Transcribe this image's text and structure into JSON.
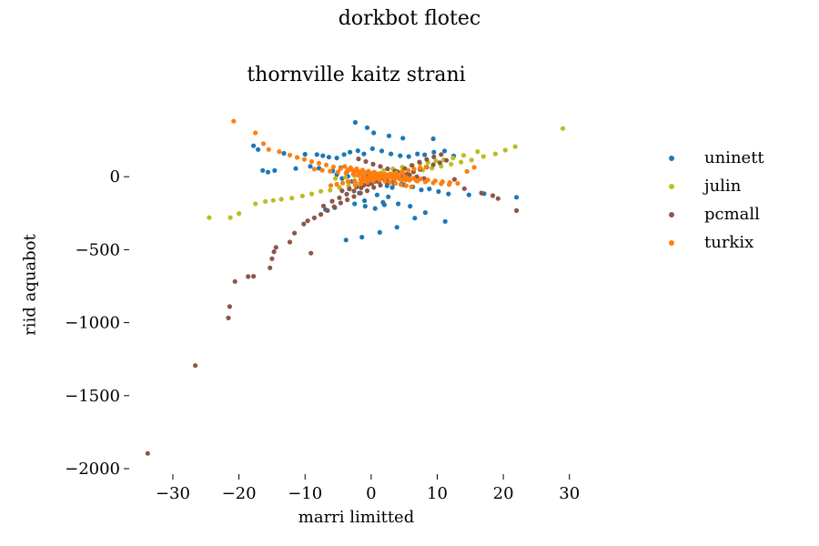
{
  "chart_data": {
    "type": "scatter",
    "suptitle": "dorkbot flotec",
    "title": "thornville kaitz strani",
    "xlabel": "marri limitted",
    "ylabel": "riid aquabot",
    "xlim": [
      -35.5,
      31
    ],
    "ylim": [
      -2000,
      400
    ],
    "xticks": [
      -30,
      -20,
      -10,
      0,
      10,
      20,
      30
    ],
    "yticks": [
      -2000,
      -1500,
      -1000,
      -500,
      0
    ],
    "xtick_labels": [
      "−30",
      "−20",
      "−10",
      "0",
      "10",
      "20",
      "30"
    ],
    "ytick_labels": [
      "−2000",
      "−1500",
      "−1000",
      "−500",
      "0"
    ],
    "grid": false,
    "legend_position": "right",
    "series": [
      {
        "name": "uninett",
        "color": "#1f77b4",
        "x": [
          -2.4,
          -0.6,
          0.4,
          2.7,
          4.8,
          9.4,
          -17.8,
          -17.1,
          -13.2,
          -10.0,
          -8.2,
          -7.3,
          -6.4,
          -5.2,
          -4.1,
          -3.2,
          -2.0,
          -1.1,
          0.2,
          1.6,
          3.0,
          4.4,
          5.7,
          7.0,
          8.1,
          9.5,
          11.1,
          12.5,
          -16.4,
          -15.6,
          -14.6,
          -11.4,
          -9.2,
          -7.9,
          -5.8,
          -4.6,
          -3.6,
          -2.6,
          -1.5,
          -0.4,
          0.8,
          2.1,
          3.5,
          4.9,
          6.3,
          7.6,
          8.8,
          10.2,
          11.7,
          14.8,
          17.1,
          22.0,
          -3.3,
          -1.8,
          0.9,
          2.6,
          -2.5,
          -0.9,
          0.6,
          2.0,
          -3.8,
          -1.4,
          1.3,
          3.9,
          11.2,
          6.6,
          -6.9,
          -5.5,
          -1.0,
          1.8,
          4.1,
          5.9,
          8.2,
          -4.4,
          -2.9,
          0.1,
          2.4,
          3.2,
          -5.2,
          -3.5,
          -1.2,
          1.1,
          2.9,
          4.6
        ],
        "y": [
          372,
          336,
          300,
          280,
          264,
          260,
          212,
          186,
          160,
          154,
          152,
          144,
          134,
          128,
          152,
          168,
          178,
          156,
          192,
          176,
          156,
          144,
          138,
          156,
          150,
          168,
          176,
          142,
          43,
          31,
          42,
          56,
          71,
          58,
          39,
          61,
          38,
          22,
          18,
          5,
          -8,
          -30,
          -45,
          -56,
          -70,
          -90,
          -84,
          -102,
          -118,
          -124,
          -116,
          -141,
          -82,
          -112,
          -125,
          -138,
          -186,
          -202,
          -218,
          -192,
          -434,
          -414,
          -382,
          -346,
          -306,
          -284,
          -226,
          -212,
          -164,
          -176,
          -186,
          -202,
          -246,
          -12,
          -32,
          -46,
          -62,
          -74,
          14,
          2,
          -9,
          -21,
          -38,
          -49
        ]
      },
      {
        "name": "julin",
        "color": "#bcbd22",
        "x": [
          -24.5,
          -21.3,
          -20.0,
          -17.5,
          -16.0,
          -14.8,
          -13.6,
          -12.0,
          -10.4,
          -9.0,
          -7.6,
          -6.2,
          -4.8,
          -3.4,
          -2.0,
          -0.6,
          0.8,
          2.2,
          3.6,
          5.0,
          6.4,
          7.8,
          9.2,
          10.6,
          12.1,
          13.6,
          15.2,
          17.0,
          18.8,
          20.3,
          21.8,
          29.0,
          -5.4,
          -3.9,
          -2.5,
          -1.2,
          0.4,
          1.9,
          3.3,
          4.7,
          6.1,
          7.4,
          8.6,
          9.8,
          11.0,
          12.4,
          14.0,
          16.1
        ],
        "y": [
          -280,
          -280,
          -252,
          -186,
          -170,
          -162,
          -154,
          -146,
          -132,
          -118,
          -100,
          -92,
          -74,
          -62,
          -48,
          -36,
          -24,
          -10,
          4,
          18,
          32,
          46,
          58,
          72,
          86,
          100,
          114,
          138,
          156,
          182,
          206,
          330,
          -12,
          -4,
          6,
          18,
          30,
          42,
          54,
          66,
          78,
          90,
          98,
          108,
          116,
          128,
          146,
          172
        ]
      },
      {
        "name": "pcmall",
        "color": "#8c564b",
        "x": [
          -33.8,
          -26.6,
          -21.6,
          -21.4,
          -20.6,
          -18.6,
          -17.8,
          -15.3,
          -15.0,
          -14.7,
          -14.4,
          -12.3,
          -11.6,
          -9.1,
          -10.2,
          -9.6,
          -8.6,
          -7.6,
          -6.6,
          -5.6,
          -4.6,
          -3.6,
          -2.6,
          -1.6,
          -0.6,
          0.4,
          1.4,
          2.4,
          3.4,
          4.4,
          5.4,
          6.4,
          7.4,
          8.4,
          9.4,
          10.4,
          11.4,
          12.6,
          14.1,
          16.7,
          18.4,
          19.2,
          22.0,
          -7.2,
          -5.9,
          -4.8,
          -3.7,
          -2.6,
          -1.5,
          -0.4,
          0.7,
          1.8,
          2.9,
          4.0,
          5.1,
          6.2,
          7.3,
          8.4,
          9.5,
          10.6,
          -1.9,
          -0.8,
          0.3,
          1.4,
          2.5,
          3.6,
          4.7,
          5.8,
          6.9,
          8.0,
          -4.4,
          -3.3,
          -2.2,
          -1.1,
          0.1,
          1.2,
          2.3,
          3.4,
          4.5,
          5.6
        ],
        "y": [
          -1895,
          -1294,
          -968,
          -890,
          -718,
          -684,
          -682,
          -624,
          -562,
          -514,
          -484,
          -448,
          -386,
          -524,
          -324,
          -302,
          -282,
          -258,
          -232,
          -206,
          -180,
          -158,
          -136,
          -112,
          -96,
          -74,
          -58,
          -42,
          -20,
          -2,
          16,
          34,
          50,
          66,
          82,
          96,
          112,
          -18,
          -82,
          -112,
          -130,
          -150,
          -232,
          -200,
          -168,
          -144,
          -120,
          -98,
          -76,
          -54,
          -32,
          -10,
          12,
          34,
          56,
          78,
          100,
          118,
          136,
          152,
          122,
          104,
          86,
          70,
          54,
          40,
          26,
          12,
          0,
          -12,
          -96,
          -84,
          -70,
          -58,
          -46,
          -34,
          -22,
          -10,
          2,
          14
        ]
      },
      {
        "name": "turkix",
        "color": "#ff7f0e",
        "x": [
          -20.8,
          -17.5,
          -16.3,
          -15.5,
          -13.9,
          -12.3,
          -11.2,
          -10.1,
          -9.0,
          -7.9,
          -6.8,
          -5.7,
          -4.6,
          -3.5,
          -2.4,
          -1.3,
          -0.2,
          0.9,
          2.0,
          3.1,
          4.2,
          5.3,
          6.4,
          7.5,
          8.6,
          9.7,
          10.8,
          11.9,
          13.1,
          14.5,
          15.6,
          -8.6,
          -7.4,
          -6.2,
          -5.0,
          -3.8,
          -2.6,
          -1.4,
          -0.2,
          1.0,
          2.2,
          3.4,
          4.6,
          5.8,
          7.0,
          8.2,
          9.4,
          10.6,
          11.8,
          -6.1,
          -5.2,
          -4.3,
          -3.4,
          -2.5,
          -1.6,
          -0.7,
          0.2,
          1.1,
          2.0,
          2.9,
          3.8,
          4.7,
          5.6,
          6.5,
          7.4,
          8.3,
          -4.0,
          -3.1,
          -2.2,
          -1.3,
          -0.4,
          0.5,
          1.4,
          2.3,
          3.2,
          4.1,
          5.0,
          5.9,
          6.8,
          -3.5,
          -2.7,
          -1.9,
          -1.1,
          -0.3,
          0.5,
          1.3,
          2.1,
          2.9,
          3.7,
          4.5,
          5.3,
          6.1,
          -2.9,
          -2.0,
          -1.1,
          -0.2,
          0.7,
          1.6,
          2.5,
          3.4,
          4.3,
          5.2,
          -2.4,
          -1.5,
          -0.6,
          0.3,
          1.2,
          2.1,
          3.0,
          3.9,
          4.8,
          -1.8,
          -0.9,
          0.0,
          0.9,
          1.8,
          2.7,
          3.6,
          -1.2,
          -0.3,
          0.6,
          1.5,
          2.4,
          3.3
        ],
        "y": [
          380,
          300,
          226,
          186,
          172,
          148,
          132,
          118,
          104,
          92,
          80,
          68,
          56,
          48,
          40,
          32,
          26,
          20,
          14,
          8,
          2,
          -4,
          -10,
          -16,
          -22,
          -28,
          -34,
          -40,
          -46,
          36,
          64,
          52,
          44,
          38,
          32,
          26,
          20,
          14,
          8,
          2,
          -6,
          -12,
          -18,
          -24,
          -30,
          -36,
          -42,
          -48,
          -54,
          -60,
          -52,
          -44,
          -36,
          -28,
          -20,
          -12,
          -4,
          4,
          12,
          20,
          28,
          36,
          44,
          52,
          60,
          68,
          70,
          62,
          54,
          46,
          38,
          30,
          22,
          14,
          6,
          -2,
          -10,
          -18,
          -26,
          -34,
          18,
          10,
          2,
          -6,
          -14,
          -22,
          -30,
          -38,
          -46,
          -54,
          -62,
          -70,
          48,
          40,
          32,
          24,
          16,
          8,
          0,
          -8,
          -16,
          -24,
          -58,
          -48,
          -38,
          -28,
          -18,
          -8,
          2,
          12,
          22,
          34,
          26,
          18,
          10,
          2,
          -6,
          -14,
          -26,
          -18,
          -10,
          -2,
          6,
          14
        ]
      }
    ]
  }
}
